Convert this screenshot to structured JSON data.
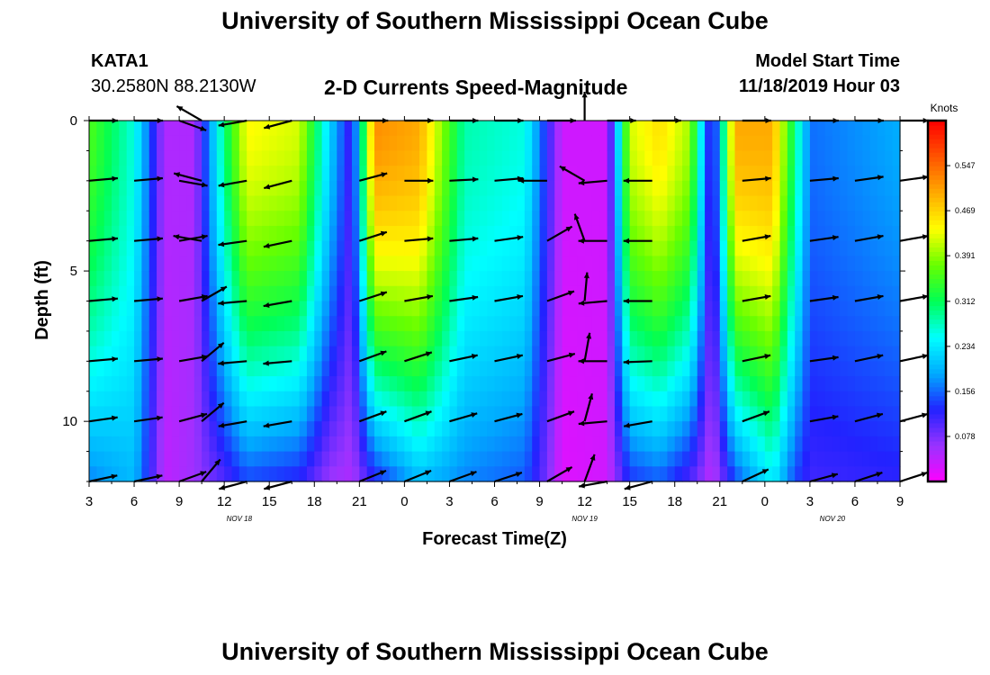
{
  "header": {
    "title": "University of Southern Mississippi Ocean Cube",
    "station_id": "KATA1",
    "station_coords": "30.2580N 88.2130W",
    "subtitle": "2-D Currents Speed-Magnitude",
    "model_start_label": "Model Start Time",
    "model_start_value": "11/18/2019 Hour 03"
  },
  "footer": {
    "title": "University of Southern Mississippi Ocean Cube"
  },
  "chart_data": {
    "type": "heatmap",
    "title": "2-D Currents Speed-Magnitude",
    "xlabel": "Forecast Time(Z)",
    "ylabel": "Depth (ft)",
    "x_range_hours_from_model_start": [
      0,
      54
    ],
    "y_range_ft": [
      0,
      12
    ],
    "y_inverted": true,
    "x_tick_labels": [
      "3",
      "6",
      "9",
      "12",
      "15",
      "18",
      "21",
      "0",
      "3",
      "6",
      "9",
      "12",
      "15",
      "18",
      "21",
      "0",
      "3",
      "6",
      "9"
    ],
    "date_labels": [
      {
        "text": "NOV 18",
        "at_hour": 10
      },
      {
        "text": "NOV 19",
        "at_hour": 33
      },
      {
        "text": "NOV 20",
        "at_hour": 49.5
      }
    ],
    "y_tick_labels": [
      {
        "value": 0,
        "label": "0"
      },
      {
        "value": 5,
        "label": "5"
      },
      {
        "value": 10,
        "label": "10"
      }
    ],
    "colorbar": {
      "title": "Knots",
      "range": [
        0.0,
        0.625
      ],
      "tick_values": [
        0.078,
        0.156,
        0.234,
        0.312,
        0.391,
        0.469,
        0.547
      ],
      "tick_labels": [
        "0.078",
        "0.156",
        "0.234",
        "0.312",
        "0.391",
        "0.469",
        "0.547"
      ],
      "colors": [
        "#ff00ff",
        "#9933ff",
        "#2222ff",
        "#00aaff",
        "#00ffff",
        "#00ff55",
        "#66ff00",
        "#ffff00",
        "#ffaa00",
        "#ff5500",
        "#ff0000"
      ]
    },
    "depths_ft": [
      0,
      2,
      4,
      6,
      8,
      10,
      12
    ],
    "speed_profile_points": [
      {
        "hour": 0,
        "surface": 0.36,
        "bottom": 0.17
      },
      {
        "hour": 3,
        "surface": 0.26,
        "bottom": 0.2
      },
      {
        "hour": 5,
        "surface": 0.05,
        "bottom": 0.04
      },
      {
        "hour": 7,
        "surface": 0.05,
        "bottom": 0.06
      },
      {
        "hour": 9,
        "surface": 0.3,
        "bottom": 0.1
      },
      {
        "hour": 10.5,
        "surface": 0.44,
        "bottom": 0.14
      },
      {
        "hour": 14,
        "surface": 0.42,
        "bottom": 0.12
      },
      {
        "hour": 16,
        "surface": 0.22,
        "bottom": 0.06
      },
      {
        "hour": 17.5,
        "surface": 0.1,
        "bottom": 0.05
      },
      {
        "hour": 19,
        "surface": 0.52,
        "bottom": 0.12
      },
      {
        "hour": 22,
        "surface": 0.5,
        "bottom": 0.2
      },
      {
        "hour": 25,
        "surface": 0.28,
        "bottom": 0.17
      },
      {
        "hour": 29,
        "surface": 0.26,
        "bottom": 0.15
      },
      {
        "hour": 30.5,
        "surface": 0.12,
        "bottom": 0.08
      },
      {
        "hour": 31.5,
        "surface": 0.03,
        "bottom": 0.02
      },
      {
        "hour": 34.5,
        "surface": 0.03,
        "bottom": 0.03
      },
      {
        "hour": 36,
        "surface": 0.42,
        "bottom": 0.13
      },
      {
        "hour": 38,
        "surface": 0.46,
        "bottom": 0.15
      },
      {
        "hour": 40,
        "surface": 0.4,
        "bottom": 0.1
      },
      {
        "hour": 41.5,
        "surface": 0.08,
        "bottom": 0.04
      },
      {
        "hour": 43,
        "surface": 0.5,
        "bottom": 0.14
      },
      {
        "hour": 45.5,
        "surface": 0.5,
        "bottom": 0.24
      },
      {
        "hour": 47,
        "surface": 0.3,
        "bottom": 0.14
      },
      {
        "hour": 48,
        "surface": 0.16,
        "bottom": 0.11
      },
      {
        "hour": 54,
        "surface": 0.19,
        "bottom": 0.12
      }
    ],
    "vector_columns": [
      {
        "hour": 0,
        "angles_deg": [
          0,
          5,
          5,
          5,
          5,
          8,
          12
        ]
      },
      {
        "hour": 3,
        "angles_deg": [
          0,
          5,
          5,
          5,
          5,
          8,
          12
        ]
      },
      {
        "hour": 6,
        "angles_deg": [
          -20,
          -10,
          10,
          10,
          10,
          15,
          20
        ]
      },
      {
        "hour": 7.5,
        "angles_deg": [
          150,
          165,
          170,
          30,
          40,
          40,
          50
        ]
      },
      {
        "hour": 10.5,
        "angles_deg": [
          190,
          190,
          188,
          185,
          185,
          190,
          195
        ]
      },
      {
        "hour": 13.5,
        "angles_deg": [
          195,
          195,
          192,
          190,
          185,
          190,
          195
        ]
      },
      {
        "hour": 18,
        "angles_deg": [
          0,
          15,
          18,
          18,
          20,
          20,
          22
        ]
      },
      {
        "hour": 21,
        "angles_deg": [
          0,
          0,
          5,
          10,
          18,
          20,
          22
        ]
      },
      {
        "hour": 24,
        "angles_deg": [
          0,
          3,
          5,
          8,
          12,
          16,
          20
        ]
      },
      {
        "hour": 27,
        "angles_deg": [
          0,
          5,
          8,
          10,
          12,
          15,
          18
        ]
      },
      {
        "hour": 30.5,
        "angles_deg": [
          0,
          180,
          30,
          20,
          15,
          20,
          30
        ]
      },
      {
        "hour": 33,
        "angles_deg": [
          90,
          150,
          110,
          85,
          80,
          75,
          70
        ]
      },
      {
        "hour": 34.5,
        "angles_deg": [
          0,
          185,
          180,
          185,
          180,
          185,
          190
        ]
      },
      {
        "hour": 37.5,
        "angles_deg": [
          0,
          180,
          180,
          180,
          182,
          190,
          195
        ]
      },
      {
        "hour": 43.5,
        "angles_deg": [
          0,
          5,
          10,
          10,
          12,
          20,
          25
        ]
      },
      {
        "hour": 48,
        "angles_deg": [
          0,
          5,
          8,
          8,
          8,
          10,
          15
        ]
      },
      {
        "hour": 51,
        "angles_deg": [
          0,
          8,
          10,
          10,
          12,
          15,
          18
        ]
      },
      {
        "hour": 54,
        "angles_deg": [
          0,
          8,
          10,
          10,
          12,
          15,
          18
        ]
      }
    ]
  }
}
